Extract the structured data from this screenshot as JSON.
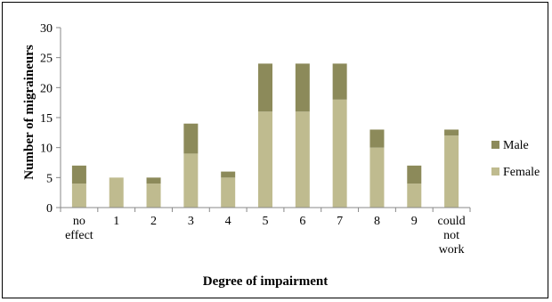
{
  "chart_data": {
    "type": "bar",
    "stacked": true,
    "categories": [
      "no effect",
      "1",
      "2",
      "3",
      "4",
      "5",
      "6",
      "7",
      "8",
      "9",
      "could not work"
    ],
    "category_lines": [
      [
        "no",
        "effect"
      ],
      [
        "1"
      ],
      [
        "2"
      ],
      [
        "3"
      ],
      [
        "4"
      ],
      [
        "5"
      ],
      [
        "6"
      ],
      [
        "7"
      ],
      [
        "8"
      ],
      [
        "9"
      ],
      [
        "could",
        "not",
        "work"
      ]
    ],
    "series": [
      {
        "name": "Female",
        "color": "#bfbb8f",
        "values": [
          4,
          5,
          4,
          9,
          5,
          16,
          16,
          18,
          10,
          4,
          12
        ]
      },
      {
        "name": "Male",
        "color": "#8c8a5a",
        "values": [
          3,
          0,
          1,
          5,
          1,
          8,
          8,
          6,
          3,
          3,
          1
        ]
      }
    ],
    "xlabel": "Degree of impairment",
    "ylabel": "Number of migraineurs",
    "ylim": [
      0,
      30
    ],
    "yticks": [
      "0",
      "5",
      "10",
      "15",
      "20",
      "25",
      "30"
    ],
    "grid": false,
    "legend": {
      "position": "right",
      "entries": [
        "Male",
        "Female"
      ]
    }
  }
}
